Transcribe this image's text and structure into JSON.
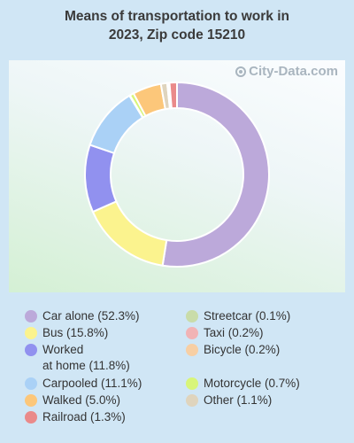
{
  "title_line1": "Means of transportation to work in",
  "title_line2": "2023, Zip code 15210",
  "watermark": "City-Data.com",
  "chart_data": {
    "type": "pie",
    "title": "Means of transportation to work in 2023, Zip code 15210",
    "donut": true,
    "legend_position": "bottom",
    "categories": [
      "Car alone",
      "Bus",
      "Worked at home",
      "Carpooled",
      "Walked",
      "Railroad",
      "Streetcar",
      "Taxi",
      "Bicycle",
      "Motorcycle",
      "Other"
    ],
    "values": [
      52.3,
      15.8,
      11.8,
      11.1,
      5.0,
      1.3,
      0.1,
      0.2,
      0.2,
      0.7,
      1.1
    ],
    "colors": [
      "#bca9da",
      "#fbf38e",
      "#9191ef",
      "#aad1f6",
      "#fcc77a",
      "#ea8a8a",
      "#c9dca9",
      "#f1b3b5",
      "#f7cfa4",
      "#d8f57a",
      "#dfd4bd"
    ],
    "legend_labels": [
      [
        "Car alone (52.3%)"
      ],
      [
        "Bus (15.8%)"
      ],
      [
        "Worked",
        "at home (11.8%)"
      ],
      [
        "Carpooled (11.1%)"
      ],
      [
        "Walked (5.0%)"
      ],
      [
        "Railroad (1.3%)"
      ],
      [
        "Streetcar (0.1%)"
      ],
      [
        "Taxi (0.2%)"
      ],
      [
        "Bicycle (0.2%)"
      ],
      [
        "Motorcycle (0.7%)"
      ],
      [
        "Other (1.1%)"
      ]
    ]
  }
}
